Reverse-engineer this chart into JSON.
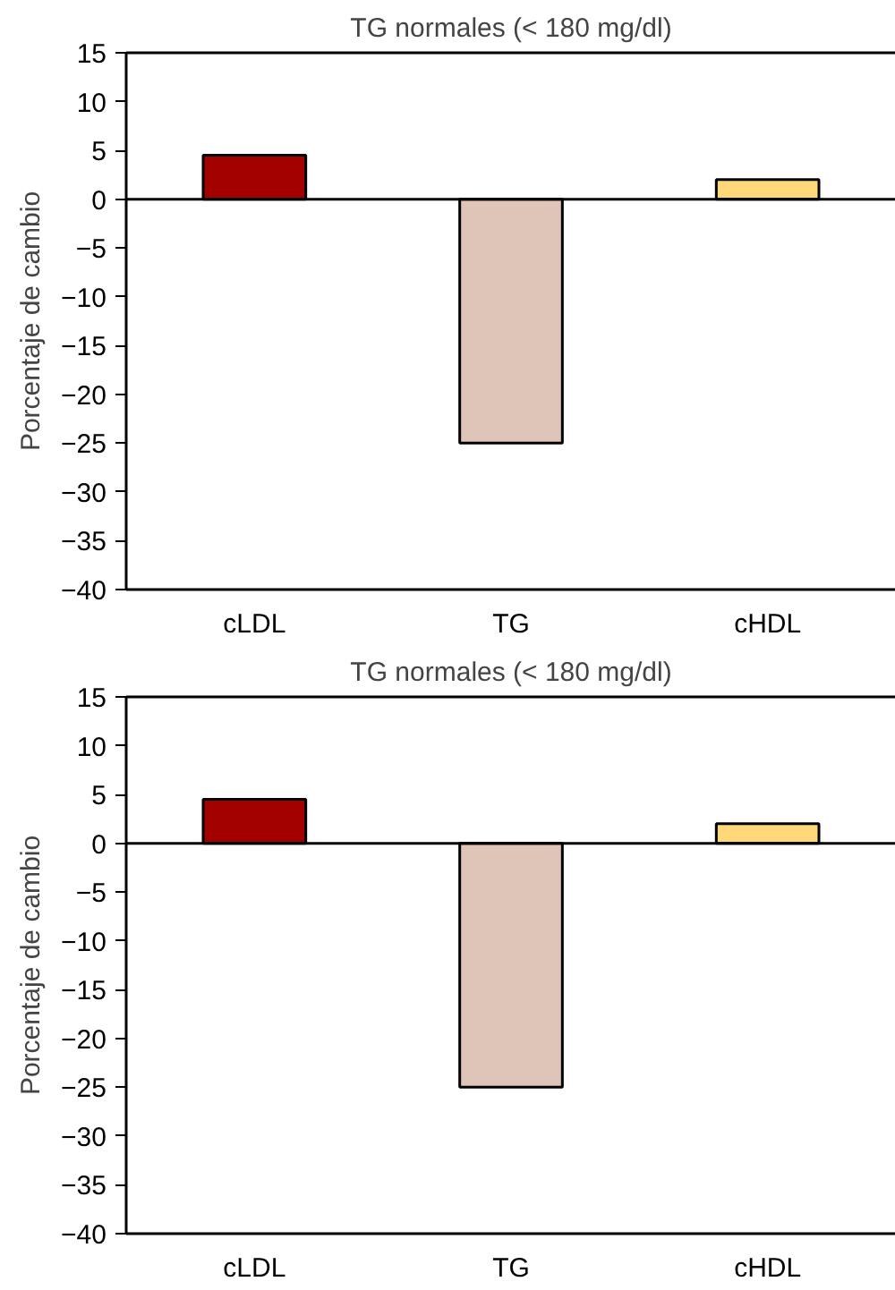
{
  "chart_data": [
    {
      "type": "bar",
      "title": "TG normales (< 180 mg/dl)",
      "ylabel": "Porcentaje de cambio",
      "categories": [
        "cLDL",
        "TG",
        "cHDL"
      ],
      "values": [
        4.5,
        -25,
        2
      ],
      "colors": [
        "#a30000",
        "#dfc5b8",
        "#ffd87a"
      ],
      "ylim": [
        -40,
        15
      ],
      "yticks": [
        15,
        10,
        5,
        0,
        {
          "value": -5,
          "label": "−5"
        },
        {
          "value": -10,
          "label": "−10"
        },
        {
          "value": -15,
          "label": "−15"
        },
        {
          "value": -20,
          "label": "−20"
        },
        {
          "value": -25,
          "label": "−25"
        },
        {
          "value": -30,
          "label": "−30"
        },
        {
          "value": -35,
          "label": "−35"
        },
        {
          "value": -40,
          "label": "−40"
        }
      ],
      "ref_lines": [
        {
          "axis": "y",
          "value": 0
        }
      ]
    },
    {
      "type": "bar",
      "title": "TG normales (< 180 mg/dl)",
      "ylabel": "Porcentaje de cambio",
      "categories": [
        "cLDL",
        "TG",
        "cHDL"
      ],
      "values": [
        4.5,
        -25,
        2
      ],
      "colors": [
        "#a30000",
        "#dfc5b8",
        "#ffd87a"
      ],
      "ylim": [
        -40,
        15
      ],
      "yticks": [
        15,
        10,
        5,
        0,
        {
          "value": -5,
          "label": "−5"
        },
        {
          "value": -10,
          "label": "−10"
        },
        {
          "value": -15,
          "label": "−15"
        },
        {
          "value": -20,
          "label": "−20"
        },
        {
          "value": -25,
          "label": "−25"
        },
        {
          "value": -30,
          "label": "−30"
        },
        {
          "value": -35,
          "label": "−35"
        },
        {
          "value": -40,
          "label": "−40"
        }
      ],
      "ref_lines": [
        {
          "axis": "y",
          "value": 0
        }
      ]
    }
  ]
}
